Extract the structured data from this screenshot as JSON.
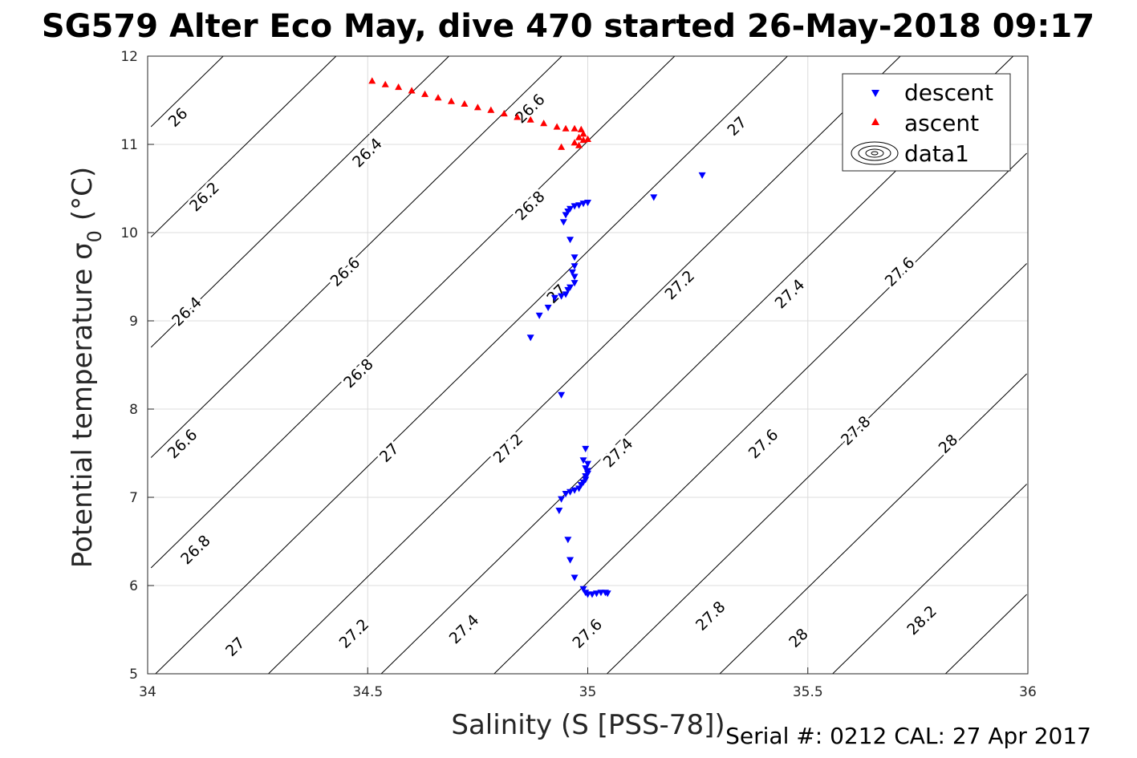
{
  "title": "SG579 Alter Eco May, dive 470 started 26-May-2018 09:17",
  "footer": "Serial #: 0212  CAL: 27 Apr 2017",
  "colors": {
    "descent": "#0000ff",
    "ascent": "#ff0000",
    "contour": "#000000",
    "grid": "#dcdcdc"
  },
  "chart_data": {
    "type": "scatter",
    "xlabel": "Salinity (S [PSS-78])",
    "ylabel": "Potential temperature σ",
    "ylabel_sub": "0",
    "ylabel_unit": "(°C)",
    "xlim": [
      34,
      36
    ],
    "ylim": [
      5,
      12
    ],
    "xticks": [
      "34",
      "34.5",
      "35",
      "35.5",
      "36"
    ],
    "yticks": [
      "5",
      "6",
      "7",
      "8",
      "9",
      "10",
      "11",
      "12"
    ],
    "grid": true,
    "legend": {
      "position": "top-right",
      "entries": [
        "descent",
        "ascent",
        "data1"
      ]
    },
    "contour_labels": [
      {
        "text": "26",
        "x": 34.07,
        "y": 11.3
      },
      {
        "text": "26.2",
        "x": 34.13,
        "y": 10.4
      },
      {
        "text": "26.4",
        "x": 34.09,
        "y": 9.1
      },
      {
        "text": "26.6",
        "x": 34.08,
        "y": 7.6
      },
      {
        "text": "26.8",
        "x": 34.11,
        "y": 6.4
      },
      {
        "text": "27",
        "x": 34.2,
        "y": 5.3
      },
      {
        "text": "26.4",
        "x": 34.5,
        "y": 10.9
      },
      {
        "text": "26.6",
        "x": 34.45,
        "y": 9.55
      },
      {
        "text": "26.8",
        "x": 34.48,
        "y": 8.4
      },
      {
        "text": "27",
        "x": 34.55,
        "y": 7.5
      },
      {
        "text": "27.2",
        "x": 34.47,
        "y": 5.45
      },
      {
        "text": "26.6",
        "x": 34.87,
        "y": 11.4
      },
      {
        "text": "26.8",
        "x": 34.87,
        "y": 10.3
      },
      {
        "text": "27",
        "x": 34.93,
        "y": 9.3
      },
      {
        "text": "27.2",
        "x": 34.82,
        "y": 7.55
      },
      {
        "text": "27.4",
        "x": 34.72,
        "y": 5.5
      },
      {
        "text": "27",
        "x": 35.34,
        "y": 11.2
      },
      {
        "text": "27.2",
        "x": 35.21,
        "y": 9.4
      },
      {
        "text": "27.4",
        "x": 35.07,
        "y": 7.5
      },
      {
        "text": "27.6",
        "x": 35.0,
        "y": 5.45
      },
      {
        "text": "27.4",
        "x": 35.46,
        "y": 9.3
      },
      {
        "text": "27.6",
        "x": 35.4,
        "y": 7.6
      },
      {
        "text": "27.8",
        "x": 35.28,
        "y": 5.65
      },
      {
        "text": "27.6",
        "x": 35.71,
        "y": 9.55
      },
      {
        "text": "27.8",
        "x": 35.61,
        "y": 7.75
      },
      {
        "text": "28",
        "x": 35.48,
        "y": 5.4
      },
      {
        "text": "28",
        "x": 35.82,
        "y": 7.6
      },
      {
        "text": "28.2",
        "x": 35.76,
        "y": 5.6
      }
    ],
    "series": [
      {
        "name": "descent",
        "marker": "triangle-down",
        "points": [
          [
            35.26,
            10.65
          ],
          [
            35.15,
            10.4
          ],
          [
            35.0,
            10.34
          ],
          [
            34.99,
            10.33
          ],
          [
            34.98,
            10.31
          ],
          [
            34.97,
            10.3
          ],
          [
            34.96,
            10.27
          ],
          [
            34.955,
            10.24
          ],
          [
            34.95,
            10.2
          ],
          [
            34.945,
            10.12
          ],
          [
            34.96,
            9.92
          ],
          [
            34.97,
            9.72
          ],
          [
            34.97,
            9.62
          ],
          [
            34.965,
            9.55
          ],
          [
            34.97,
            9.5
          ],
          [
            34.97,
            9.43
          ],
          [
            34.96,
            9.38
          ],
          [
            34.955,
            9.35
          ],
          [
            34.95,
            9.3
          ],
          [
            34.94,
            9.28
          ],
          [
            34.925,
            9.26
          ],
          [
            34.91,
            9.15
          ],
          [
            34.89,
            9.06
          ],
          [
            34.87,
            8.81
          ],
          [
            34.94,
            8.16
          ],
          [
            34.995,
            7.55
          ],
          [
            34.99,
            7.42
          ],
          [
            35.0,
            7.38
          ],
          [
            34.995,
            7.33
          ],
          [
            35.0,
            7.3
          ],
          [
            35.0,
            7.27
          ],
          [
            34.995,
            7.24
          ],
          [
            34.995,
            7.2
          ],
          [
            34.99,
            7.17
          ],
          [
            34.985,
            7.14
          ],
          [
            34.98,
            7.1
          ],
          [
            34.97,
            7.08
          ],
          [
            34.96,
            7.06
          ],
          [
            34.95,
            7.04
          ],
          [
            34.94,
            6.98
          ],
          [
            34.935,
            6.85
          ],
          [
            34.955,
            6.52
          ],
          [
            34.96,
            6.29
          ],
          [
            34.97,
            6.09
          ],
          [
            34.99,
            5.96
          ],
          [
            34.995,
            5.92
          ],
          [
            35.0,
            5.9
          ],
          [
            35.01,
            5.9
          ],
          [
            35.02,
            5.91
          ],
          [
            35.03,
            5.92
          ],
          [
            35.04,
            5.92
          ],
          [
            35.045,
            5.91
          ]
        ]
      },
      {
        "name": "ascent",
        "marker": "triangle-up",
        "points": [
          [
            34.51,
            11.72
          ],
          [
            34.54,
            11.68
          ],
          [
            34.57,
            11.65
          ],
          [
            34.6,
            11.61
          ],
          [
            34.63,
            11.57
          ],
          [
            34.66,
            11.53
          ],
          [
            34.69,
            11.49
          ],
          [
            34.72,
            11.46
          ],
          [
            34.75,
            11.42
          ],
          [
            34.78,
            11.39
          ],
          [
            34.81,
            11.35
          ],
          [
            34.84,
            11.31
          ],
          [
            34.87,
            11.28
          ],
          [
            34.9,
            11.24
          ],
          [
            34.93,
            11.2
          ],
          [
            34.95,
            11.18
          ],
          [
            34.97,
            11.18
          ],
          [
            34.985,
            11.17
          ],
          [
            34.99,
            11.12
          ],
          [
            34.98,
            11.08
          ],
          [
            34.99,
            11.05
          ],
          [
            34.97,
            11.02
          ],
          [
            34.98,
            10.99
          ],
          [
            34.94,
            10.97
          ],
          [
            35.0,
            11.06
          ]
        ]
      }
    ]
  }
}
